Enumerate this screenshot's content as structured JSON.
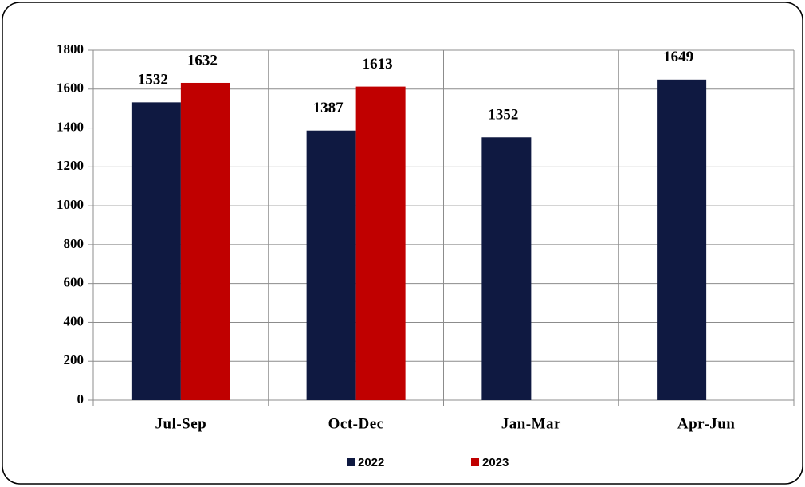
{
  "chart_data": {
    "type": "bar",
    "categories": [
      "Jul-Sep",
      "Oct-Dec",
      "Jan-Mar",
      "Apr-Jun"
    ],
    "series": [
      {
        "name": "2022",
        "color": "#0f1941",
        "values": [
          1532,
          1387,
          1352,
          1649
        ]
      },
      {
        "name": "2023",
        "color": "#c00000",
        "values": [
          1632,
          1613,
          null,
          null
        ]
      }
    ],
    "ylim": [
      0,
      1800
    ],
    "yticks": [
      0,
      200,
      400,
      600,
      800,
      1000,
      1200,
      1400,
      1600,
      1800
    ],
    "grid": true,
    "legend": "bottom"
  }
}
